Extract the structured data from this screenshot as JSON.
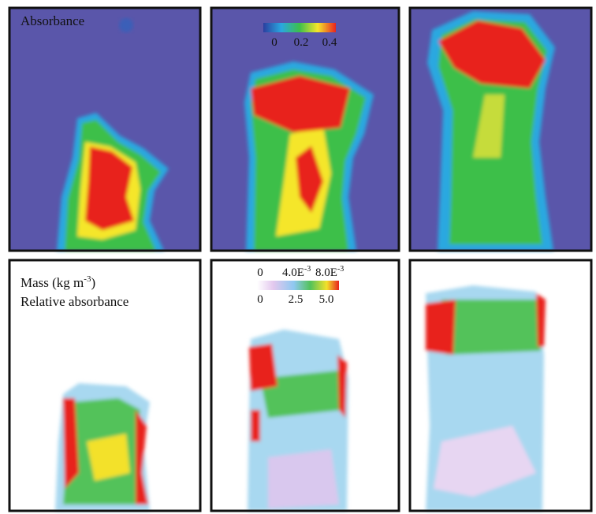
{
  "top_row": {
    "label": "Absorbance",
    "colorbar": {
      "ticks": [
        "0",
        "0.2",
        "0.4"
      ]
    }
  },
  "bottom_row": {
    "label_mass": {
      "text": "Mass (kg m",
      "sup": "-3",
      "end": ")"
    },
    "label_relative": "Relative absorbance",
    "colorbar": {
      "mass_ticks": [
        {
          "text": "0"
        },
        {
          "text": "4.0E",
          "sup": "-3"
        },
        {
          "text": "8.0E",
          "sup": "-3"
        }
      ],
      "relative_ticks": [
        "0",
        "2.5",
        "5.0"
      ]
    }
  }
}
